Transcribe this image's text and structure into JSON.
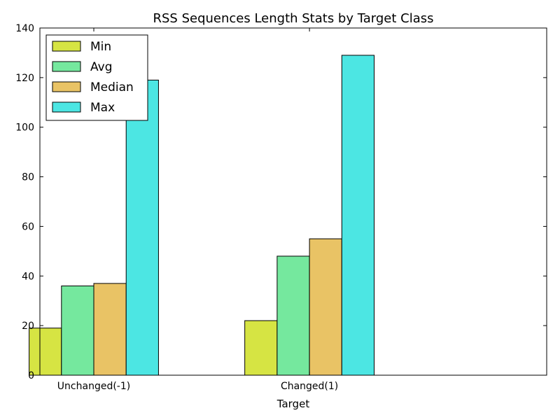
{
  "chart_data": {
    "type": "bar",
    "title": "RSS Sequences Length Stats by Target Class",
    "xlabel": "Target",
    "ylabel": "",
    "categories": [
      "Unchanged(-1)",
      "Changed(1)"
    ],
    "series": [
      {
        "name": "Min",
        "color": "#d6e443",
        "values": [
          19,
          22
        ]
      },
      {
        "name": "Avg",
        "color": "#75e89e",
        "values": [
          36,
          48
        ]
      },
      {
        "name": "Median",
        "color": "#e9c365",
        "values": [
          37,
          55
        ]
      },
      {
        "name": "Max",
        "color": "#4ce6e3",
        "values": [
          119,
          129
        ]
      }
    ],
    "ylim": [
      0,
      140
    ],
    "yticks": [
      0,
      20,
      40,
      60,
      80,
      100,
      120,
      140
    ],
    "xlim": [
      -0.25,
      2.1
    ],
    "grid": false,
    "legend_position": "top-left"
  }
}
